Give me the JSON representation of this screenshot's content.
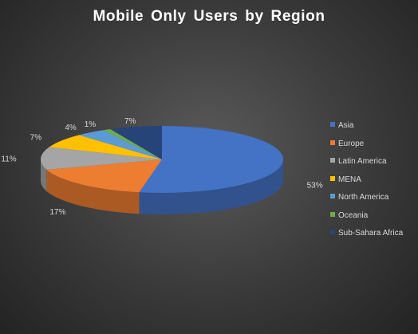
{
  "chart_data": {
    "type": "pie",
    "title": "Mobile Only Users by Region",
    "categories": [
      "Asia",
      "Europe",
      "Latin America",
      "MENA",
      "North America",
      "Oceania",
      "Sub-Sahara Africa"
    ],
    "values": [
      53,
      17,
      11,
      7,
      4,
      1,
      7
    ],
    "value_labels": [
      "53%",
      "17%",
      "11%",
      "7%",
      "4%",
      "1%",
      "7%"
    ],
    "colors": [
      "#4472c4",
      "#ed7d31",
      "#a5a5a5",
      "#ffc000",
      "#5b9bd5",
      "#70ad47",
      "#264478"
    ],
    "style": "3d",
    "legend_position": "right"
  }
}
